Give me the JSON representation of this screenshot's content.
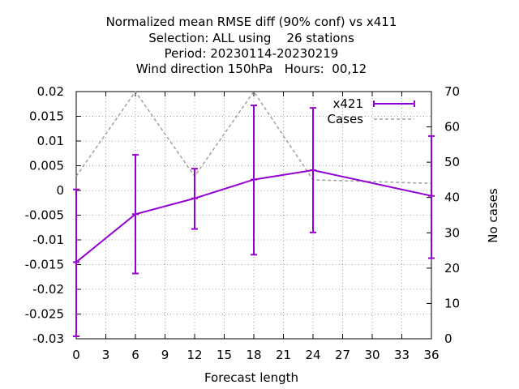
{
  "chart_data": {
    "type": "line",
    "title_lines": [
      "Normalized mean RMSE diff (90% conf) vs x411",
      "Selection: ALL using    26 stations",
      "Period: 20230114-20230219",
      "Wind direction 150hPa   Hours:  00,12"
    ],
    "xlabel": "Forecast length",
    "ylabel_right": "No cases",
    "xlim": [
      0,
      36
    ],
    "ylim": [
      -0.03,
      0.02
    ],
    "y2lim": [
      0,
      70
    ],
    "x_ticks": [
      0,
      3,
      6,
      9,
      12,
      15,
      18,
      21,
      24,
      27,
      30,
      33,
      36
    ],
    "y_ticks": [
      -0.03,
      -0.025,
      -0.02,
      -0.015,
      -0.01,
      -0.005,
      0,
      0.005,
      0.01,
      0.015,
      0.02
    ],
    "y_tick_labels": [
      "-0.03",
      "-0.025",
      "-0.02",
      "-0.015",
      "-0.01",
      "-0.005",
      "0",
      "0.005",
      "0.01",
      "0.015",
      "0.02"
    ],
    "y2_ticks": [
      0,
      10,
      20,
      30,
      40,
      50,
      60,
      70
    ],
    "grid": true,
    "legend_position": "top-right",
    "series": [
      {
        "name": "x421",
        "color": "#9400d3",
        "style": "solid-with-errorbars",
        "axis": "left",
        "x": [
          0,
          6,
          12,
          18,
          24,
          36
        ],
        "y": [
          -0.0145,
          -0.0048,
          -0.0016,
          0.0022,
          0.0041,
          -0.0011
        ],
        "err_low": [
          -0.0295,
          -0.0168,
          -0.0078,
          -0.013,
          -0.0085,
          -0.0137
        ],
        "err_high": [
          0.0002,
          0.0072,
          0.0044,
          0.0172,
          0.0167,
          0.011
        ]
      },
      {
        "name": "Cases",
        "color": "#a0a0a0",
        "style": "dashed",
        "axis": "right",
        "x": [
          0,
          6,
          12,
          18,
          24,
          36
        ],
        "y": [
          46,
          70,
          46,
          70,
          45,
          44
        ]
      }
    ]
  }
}
